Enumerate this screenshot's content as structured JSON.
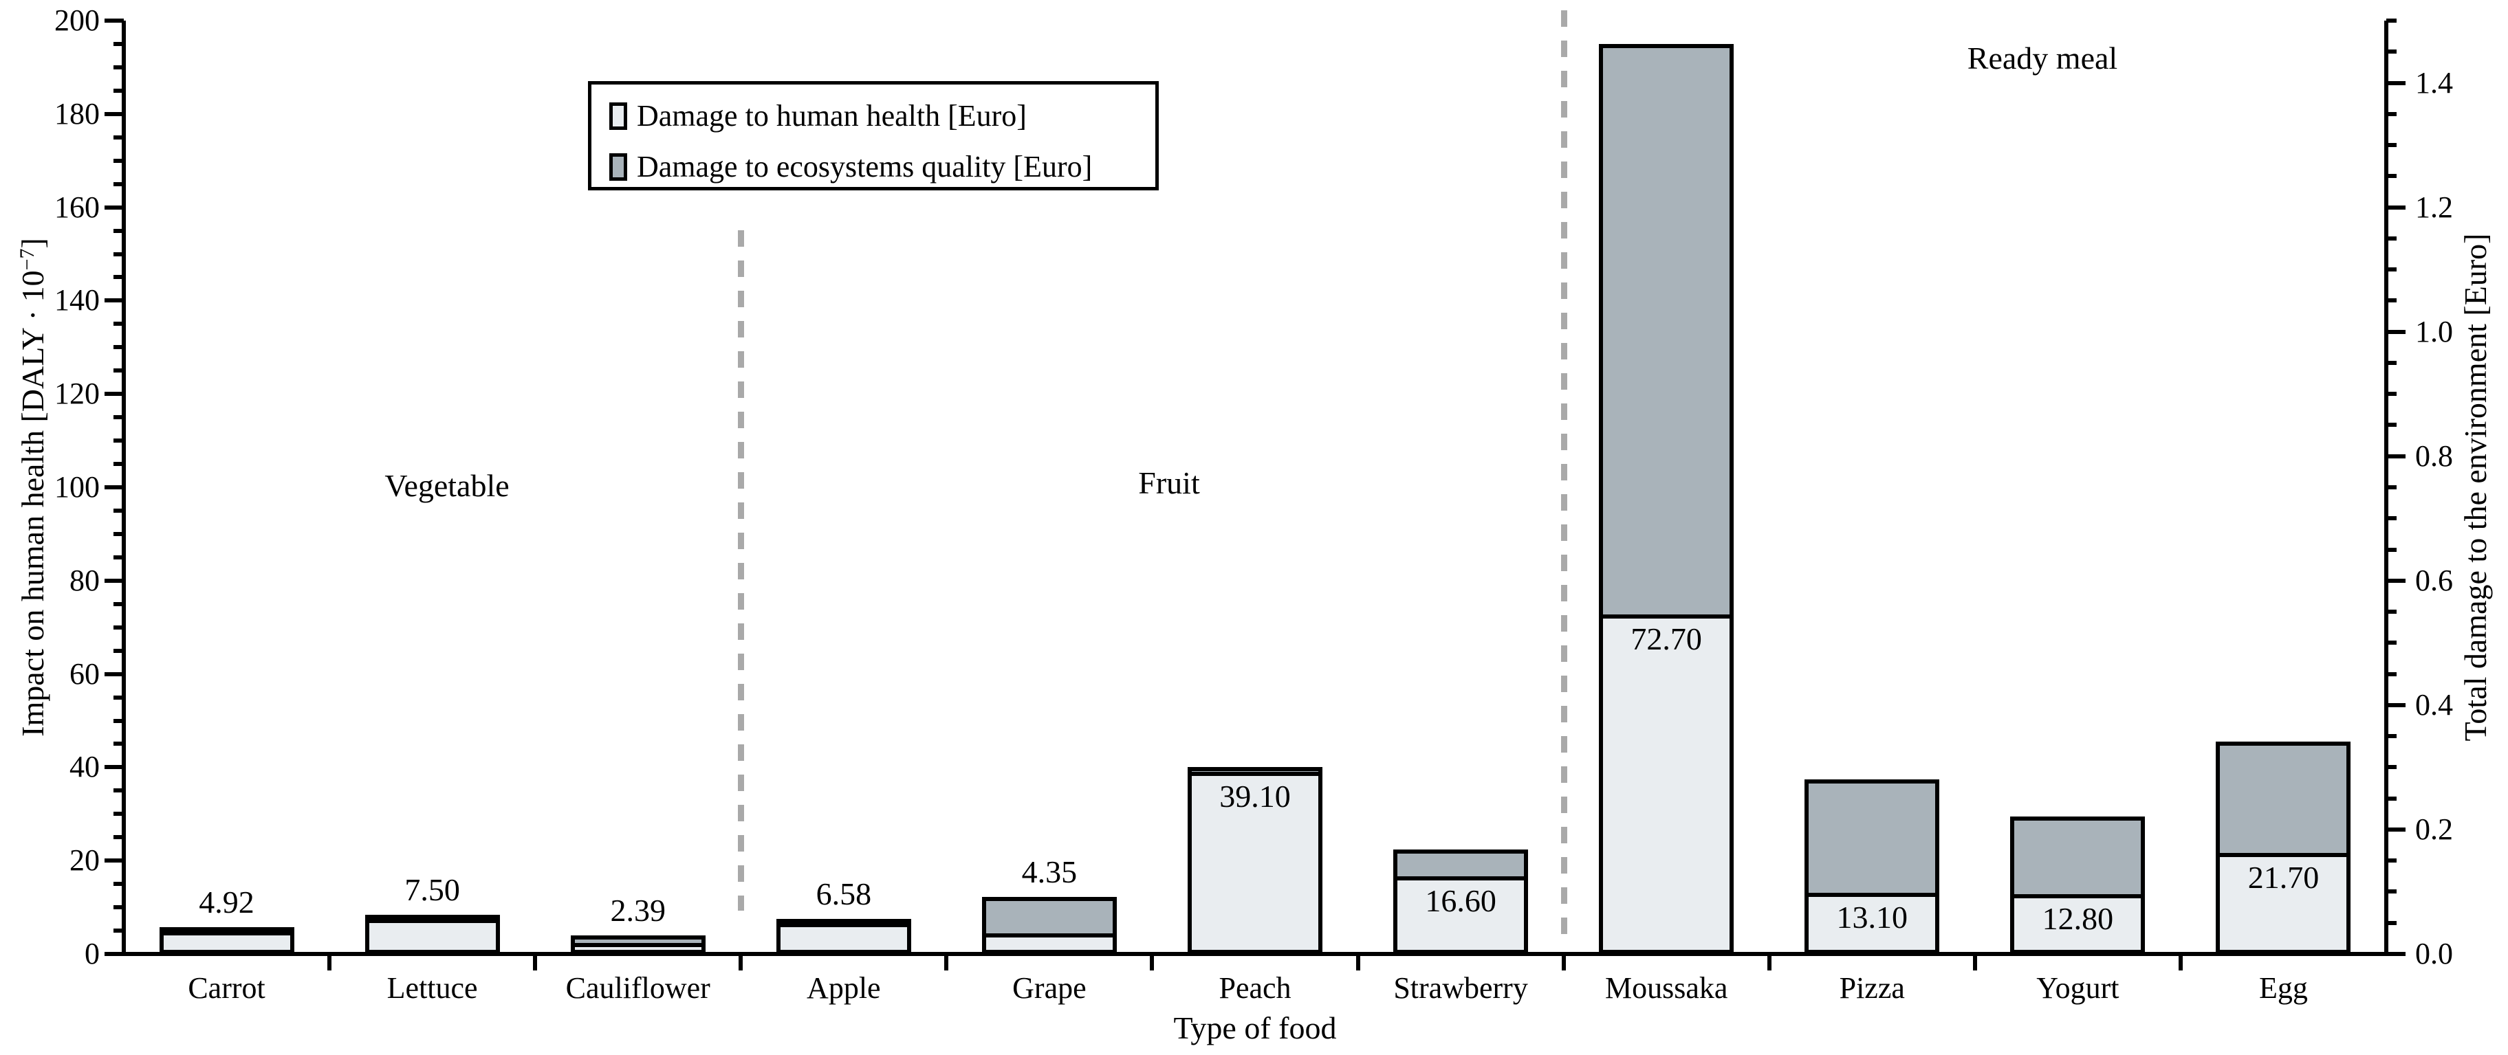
{
  "chart_data": {
    "type": "bar",
    "subtype": "stacked-vertical",
    "title": "",
    "xlabel": "Type of food",
    "left_axis": {
      "label_prefix": "Impact on human health [DALY · 10",
      "label_sup": "−7",
      "label_suffix": "]",
      "min": 0,
      "max": 200,
      "major_step": 20,
      "minor_step": 5
    },
    "right_axis": {
      "label": "Total damage to the environment  [Euro]",
      "min": 0.0,
      "max": 1.5,
      "major_step": 0.2,
      "minor_step": 0.05,
      "max_labeled": 1.4
    },
    "categories": [
      "Carrot",
      "Lettuce",
      "Cauliflower",
      "Apple",
      "Grape",
      "Peach",
      "Strawberry",
      "Moussaka",
      "Pizza",
      "Yogurt",
      "Egg"
    ],
    "series": [
      {
        "name": "Damage to human health [Euro]",
        "color": "#e9edf0",
        "values": [
          4.92,
          7.5,
          2.39,
          6.58,
          4.35,
          39.1,
          16.6,
          72.7,
          13.1,
          12.8,
          21.7
        ]
      },
      {
        "name": "Damage to ecosystems quality [Euro]",
        "color": "#a9b3ba",
        "values": [
          0.5,
          0.3,
          1.6,
          0.5,
          7.9,
          1.0,
          5.8,
          122.3,
          24.3,
          16.7,
          23.8
        ]
      }
    ],
    "value_labels": [
      "4.92",
      "7.50",
      "2.39",
      "6.58",
      "4.35",
      "39.10",
      "16.60",
      "72.70",
      "13.10",
      "12.80",
      "21.70"
    ],
    "value_label_position": [
      "above",
      "above",
      "above",
      "above",
      "above",
      "inside",
      "inside",
      "inside",
      "inside",
      "inside",
      "inside"
    ],
    "groups": [
      {
        "label": "Vegetable",
        "start": 0,
        "end": 2
      },
      {
        "label": "Fruit",
        "start": 3,
        "end": 6
      },
      {
        "label": "Ready meal",
        "start": 7,
        "end": 10
      }
    ],
    "legend": {
      "items": [
        {
          "label": "Damage to human health [Euro]",
          "color": "#e9edf0"
        },
        {
          "label": "Damage to ecosystems quality [Euro]",
          "color": "#a9b3ba"
        }
      ]
    },
    "colors": {
      "human_health_fill": "#e9edf0",
      "ecosystems_fill": "#a9b3ba",
      "bar_border": "#000000",
      "separator_dash": "#a9a9a9"
    },
    "layout_hints": {
      "grid": "off",
      "legend_position": "upper-left-inside",
      "separators": "dashed vertical between food groups"
    }
  }
}
